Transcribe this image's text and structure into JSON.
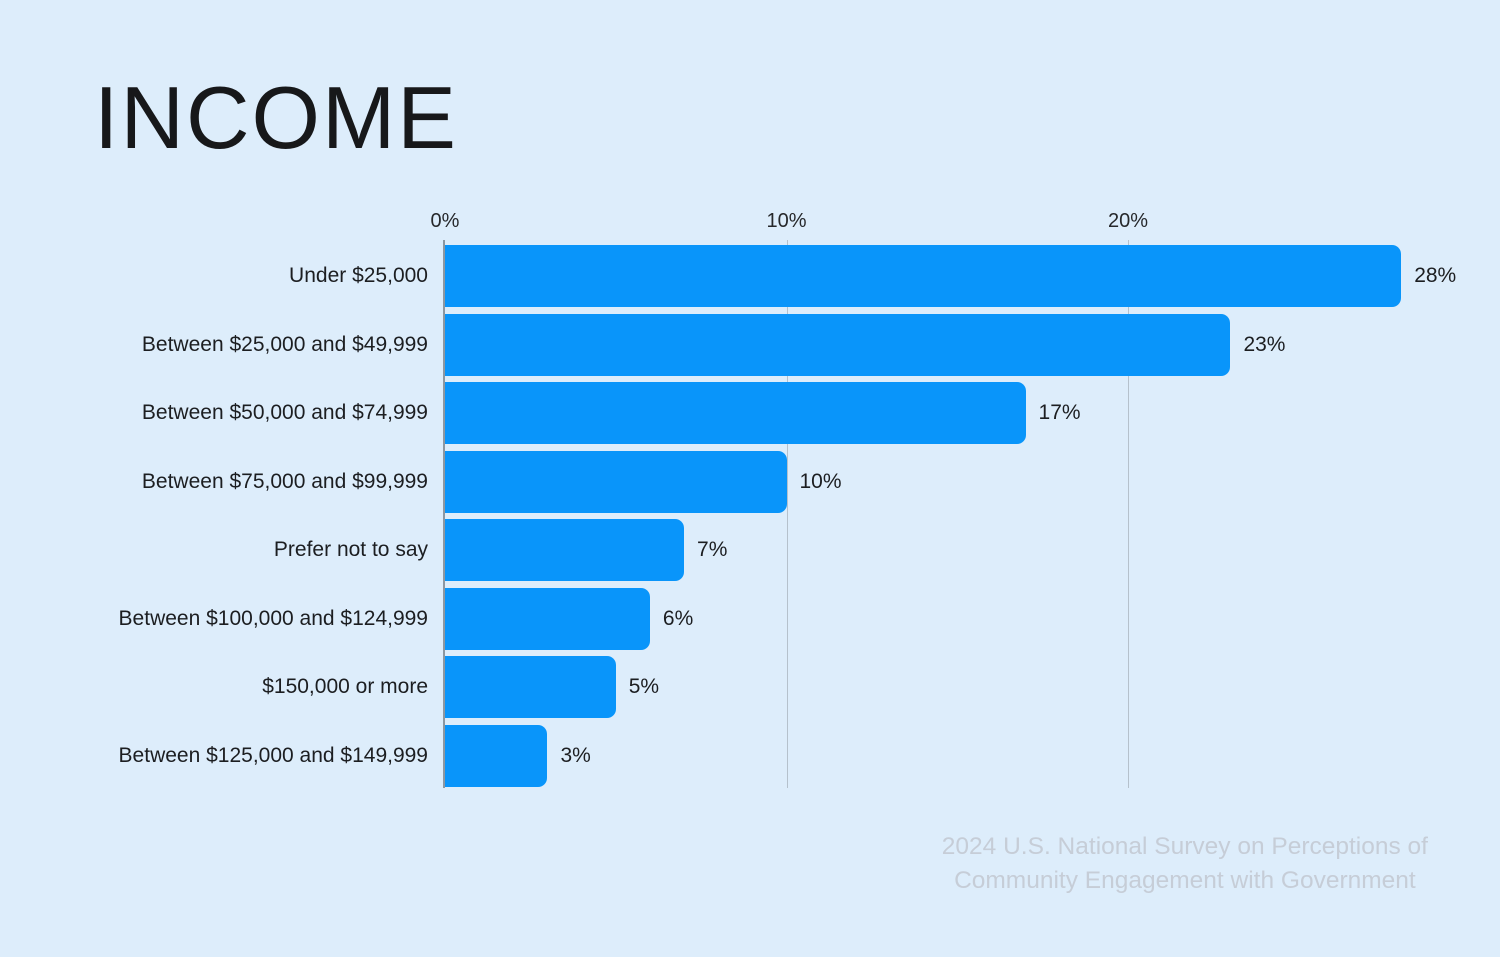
{
  "title": "INCOME",
  "chart_data": {
    "type": "bar",
    "orientation": "horizontal",
    "title": "INCOME",
    "categories": [
      "Under $25,000",
      "Between $25,000 and $49,999",
      "Between $50,000 and $74,999",
      "Between $75,000 and $99,999",
      "Prefer not to say",
      "Between $100,000 and $124,999",
      "$150,000 or more",
      "Between $125,000 and $149,999"
    ],
    "values": [
      28,
      23,
      17,
      10,
      7,
      6,
      5,
      3
    ],
    "value_labels": [
      "28%",
      "23%",
      "17%",
      "10%",
      "7%",
      "6%",
      "5%",
      "3%"
    ],
    "x_ticks": [
      0,
      10,
      20
    ],
    "x_tick_labels": [
      "0%",
      "10%",
      "20%"
    ],
    "xlim": [
      0,
      30
    ],
    "xlabel": "",
    "ylabel": "",
    "grid": true,
    "legend": false,
    "bar_color": "#0995fa"
  },
  "footer": {
    "line1": "2024 U.S. National Survey on Perceptions of",
    "line2": "Community Engagement with Government"
  },
  "colors": {
    "background": "#ddedfb",
    "bar": "#0995fa",
    "text": "#1c1e21",
    "gridline": "#b5c1cc",
    "axis_line": "#8c97a1",
    "footer_text": "#c6cdd7"
  }
}
